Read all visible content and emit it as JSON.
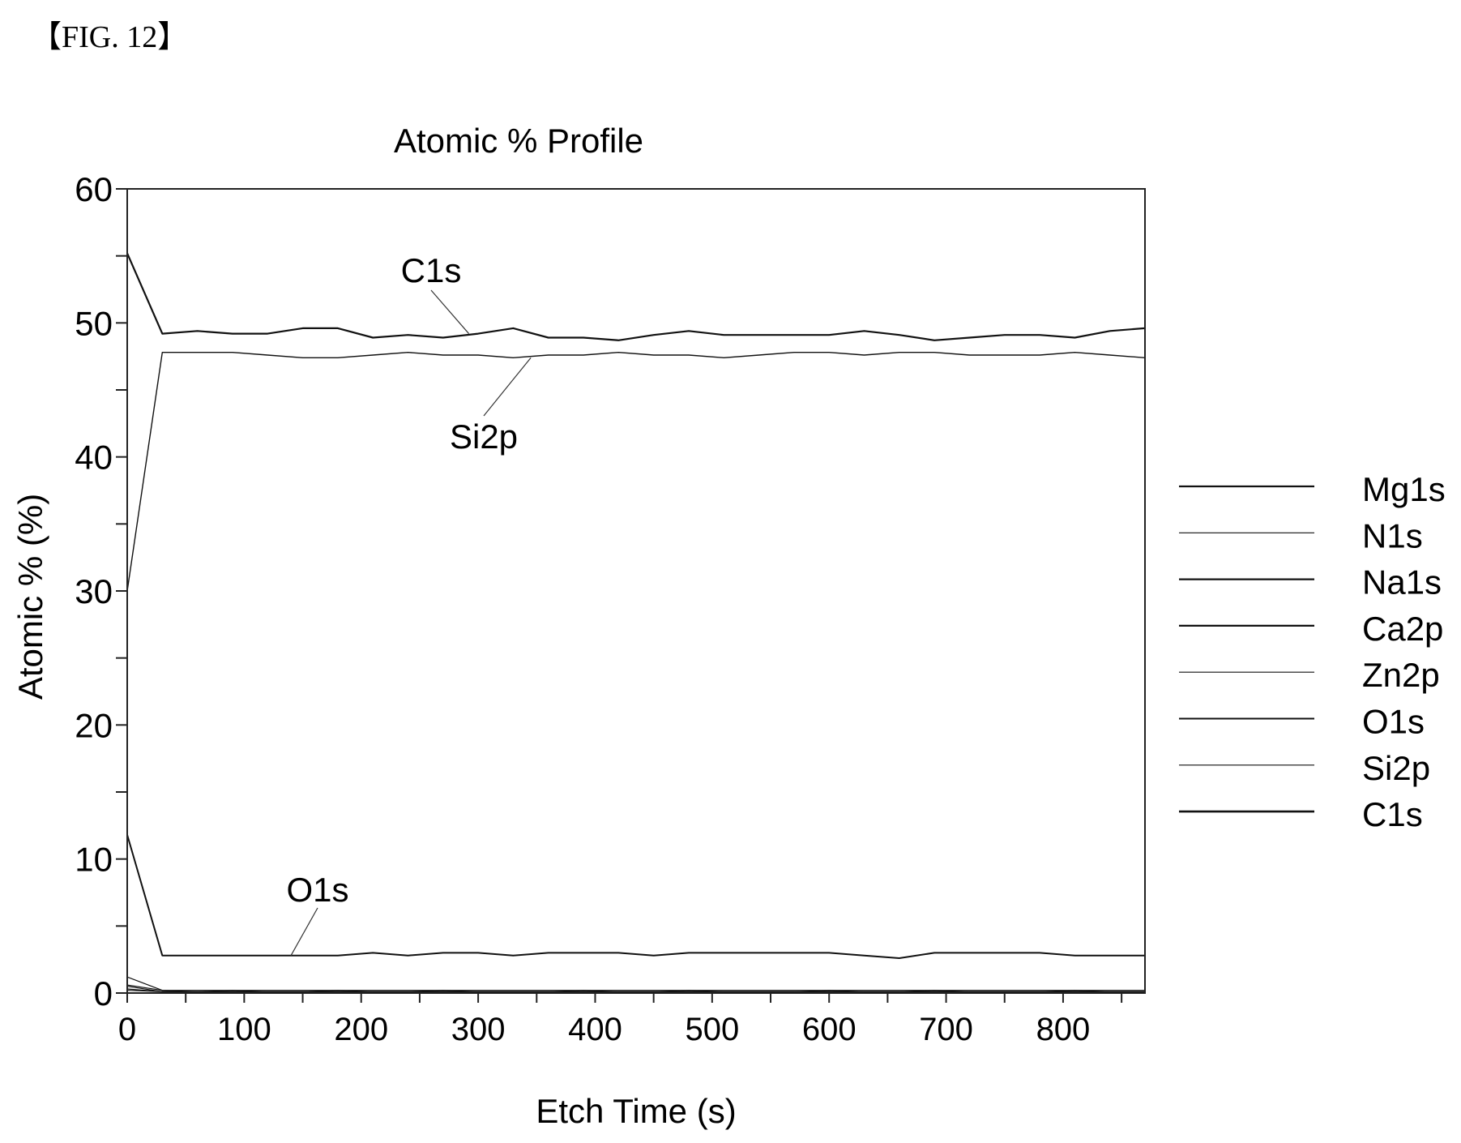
{
  "figure_label": "【FIG. 12】",
  "chart_data": {
    "type": "line",
    "title": "Atomic % Profile",
    "xlabel": "Etch Time (s)",
    "ylabel": "Atomic % (%)",
    "xlim": [
      0,
      870
    ],
    "ylim": [
      0,
      60
    ],
    "x_ticks": [
      "0",
      "100",
      "200",
      "300",
      "400",
      "500",
      "600",
      "700",
      "800"
    ],
    "y_ticks": [
      "0",
      "10",
      "20",
      "30",
      "40",
      "50",
      "60"
    ],
    "grid": false,
    "legend_position": "right",
    "legend": [
      "Mg1s",
      "N1s",
      "Na1s",
      "Ca2p",
      "Zn2p",
      "O1s",
      "Si2p",
      "C1s"
    ],
    "annotations": [
      {
        "text": "C1s",
        "series": "C1s"
      },
      {
        "text": "Si2p",
        "series": "Si2p"
      },
      {
        "text": "O1s",
        "series": "O1s"
      }
    ],
    "x": [
      0,
      30,
      60,
      90,
      120,
      150,
      180,
      210,
      240,
      270,
      300,
      330,
      360,
      390,
      420,
      450,
      480,
      510,
      540,
      570,
      600,
      630,
      660,
      690,
      720,
      750,
      780,
      810,
      840,
      870
    ],
    "series": [
      {
        "name": "Mg1s",
        "values": [
          1.2,
          0.2,
          0.2,
          0.2,
          0.2,
          0.2,
          0.2,
          0.2,
          0.2,
          0.2,
          0.2,
          0.2,
          0.2,
          0.2,
          0.2,
          0.2,
          0.2,
          0.2,
          0.2,
          0.2,
          0.2,
          0.2,
          0.2,
          0.2,
          0.2,
          0.2,
          0.2,
          0.2,
          0.2,
          0.2
        ]
      },
      {
        "name": "N1s",
        "values": [
          0.6,
          0.2,
          0.1,
          0.2,
          0.1,
          0.1,
          0.2,
          0.1,
          0.1,
          0.2,
          0.1,
          0.1,
          0.1,
          0.2,
          0.1,
          0.1,
          0.2,
          0.1,
          0.1,
          0.1,
          0.2,
          0.1,
          0.1,
          0.2,
          0.1,
          0.1,
          0.1,
          0.2,
          0.1,
          0.1
        ]
      },
      {
        "name": "Na1s",
        "values": [
          0.5,
          0.1,
          0.1,
          0.1,
          0.1,
          0.1,
          0.1,
          0.1,
          0.1,
          0.1,
          0.1,
          0.1,
          0.1,
          0.1,
          0.1,
          0.1,
          0.1,
          0.1,
          0.1,
          0.1,
          0.1,
          0.1,
          0.1,
          0.1,
          0.1,
          0.1,
          0.1,
          0.1,
          0.1,
          0.1
        ]
      },
      {
        "name": "Ca2p",
        "values": [
          0.3,
          0.1,
          0.1,
          0.1,
          0.1,
          0.1,
          0.1,
          0.1,
          0.1,
          0.1,
          0.1,
          0.1,
          0.1,
          0.1,
          0.1,
          0.1,
          0.1,
          0.1,
          0.1,
          0.1,
          0.1,
          0.1,
          0.1,
          0.1,
          0.1,
          0.1,
          0.1,
          0.1,
          0.1,
          0.1
        ]
      },
      {
        "name": "Zn2p",
        "values": [
          0.2,
          0.1,
          0.1,
          0.1,
          0.1,
          0.1,
          0.1,
          0.1,
          0.1,
          0.1,
          0.1,
          0.1,
          0.1,
          0.1,
          0.1,
          0.1,
          0.1,
          0.1,
          0.1,
          0.1,
          0.1,
          0.1,
          0.1,
          0.1,
          0.1,
          0.1,
          0.1,
          0.1,
          0.1,
          0.1
        ]
      },
      {
        "name": "O1s",
        "values": [
          11.8,
          2.8,
          2.8,
          2.8,
          2.8,
          2.8,
          2.8,
          3.0,
          2.8,
          3.0,
          3.0,
          2.8,
          3.0,
          3.0,
          3.0,
          2.8,
          3.0,
          3.0,
          3.0,
          3.0,
          3.0,
          2.8,
          2.6,
          3.0,
          3.0,
          3.0,
          3.0,
          2.8,
          2.8,
          2.8
        ]
      },
      {
        "name": "Si2p",
        "values": [
          30.0,
          47.8,
          47.8,
          47.8,
          47.6,
          47.4,
          47.4,
          47.6,
          47.8,
          47.6,
          47.6,
          47.4,
          47.6,
          47.6,
          47.8,
          47.6,
          47.6,
          47.4,
          47.6,
          47.8,
          47.8,
          47.6,
          47.8,
          47.8,
          47.6,
          47.6,
          47.6,
          47.8,
          47.6,
          47.4
        ]
      },
      {
        "name": "C1s",
        "values": [
          55.2,
          49.2,
          49.4,
          49.2,
          49.2,
          49.6,
          49.6,
          48.9,
          49.1,
          48.9,
          49.2,
          49.6,
          48.9,
          48.9,
          48.7,
          49.1,
          49.4,
          49.1,
          49.1,
          49.1,
          49.1,
          49.4,
          49.1,
          48.7,
          48.9,
          49.1,
          49.1,
          48.9,
          49.4,
          49.6
        ]
      }
    ],
    "colors": {
      "line": "#111111",
      "background": "#ffffff"
    }
  }
}
